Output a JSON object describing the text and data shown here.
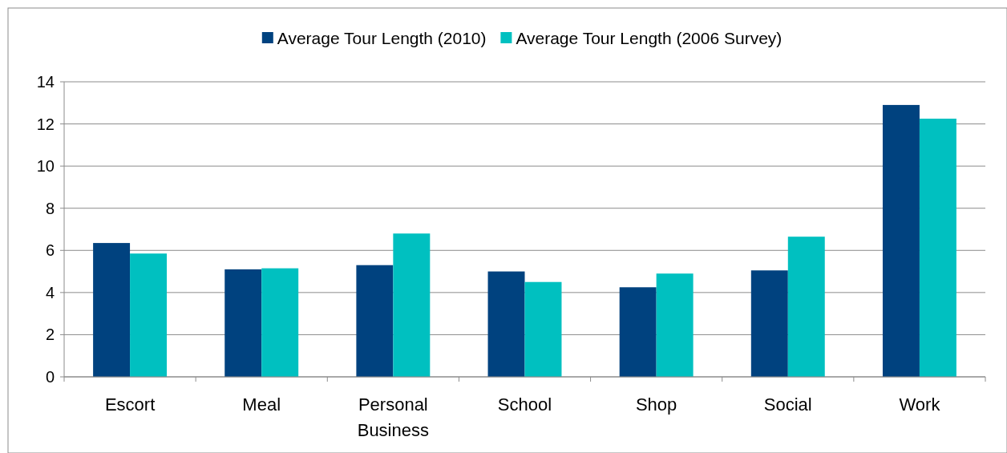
{
  "chart_data": {
    "type": "bar",
    "categories": [
      "Escort",
      "Meal",
      "Personal Business",
      "School",
      "Shop",
      "Social",
      "Work"
    ],
    "series": [
      {
        "name": "Average Tour Length (2010)",
        "color": "#00427f",
        "values": [
          6.35,
          5.1,
          5.3,
          5.0,
          4.25,
          5.05,
          12.9
        ]
      },
      {
        "name": "Average Tour Length (2006 Survey)",
        "color": "#00c0c0",
        "values": [
          5.85,
          5.15,
          6.8,
          4.5,
          4.9,
          6.65,
          12.25
        ]
      }
    ],
    "ylim": [
      0,
      14
    ],
    "yticks": [
      0,
      2,
      4,
      6,
      8,
      10,
      12,
      14
    ],
    "grid": "y",
    "legend": "top"
  }
}
